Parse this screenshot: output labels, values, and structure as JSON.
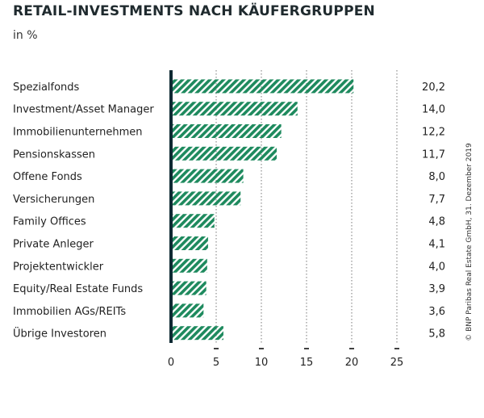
{
  "chart_data": {
    "type": "bar",
    "orientation": "horizontal",
    "title": "RETAIL-INVESTMENTS NACH KÄUFERGRUPPEN",
    "subtitle": "in %",
    "categories": [
      "Spezialfonds",
      "Investment/Asset Manager",
      "Immobilienunternehmen",
      "Pensionskassen",
      "Offene Fonds",
      "Versicherungen",
      "Family Offices",
      "Private Anleger",
      "Projektentwickler",
      "Equity/Real Estate Funds",
      "Immobilien AGs/REITs",
      "Übrige Investoren"
    ],
    "values": [
      20.2,
      14.0,
      12.2,
      11.7,
      8.0,
      7.7,
      4.8,
      4.1,
      4.0,
      3.9,
      3.6,
      5.8
    ],
    "value_labels": [
      "20,2",
      "14,0",
      "12,2",
      "11,7",
      "8,0",
      "7,7",
      "4,8",
      "4,1",
      "4,0",
      "3,9",
      "3,6",
      "5,8"
    ],
    "xlim": [
      0,
      25
    ],
    "xticks": [
      0,
      5,
      10,
      15,
      20,
      25
    ],
    "grid": true,
    "bar_fill": "hatched",
    "bar_color": "#1e8a5e",
    "axis_color": "#0f2a33"
  },
  "copyright": "© BNP Paribas Real Estate GmbH, 31. Dezember 2019"
}
